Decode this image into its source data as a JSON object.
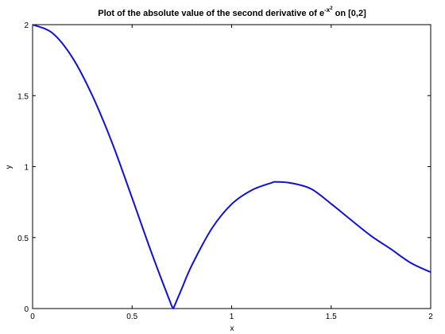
{
  "chart_data": {
    "type": "line",
    "title": {
      "prefix": "Plot of the absolute value of the second derivative of e",
      "exponent": "-x",
      "exponent_power": "2",
      "suffix": " on [0,2]"
    },
    "xlabel": "x",
    "ylabel": "y",
    "xlim": [
      0,
      2
    ],
    "ylim": [
      0,
      2
    ],
    "x_ticks": [
      {
        "value": 0,
        "label": "0"
      },
      {
        "value": 0.5,
        "label": "0.5"
      },
      {
        "value": 1,
        "label": "1"
      },
      {
        "value": 1.5,
        "label": "1.5"
      },
      {
        "value": 2,
        "label": "2"
      }
    ],
    "y_ticks": [
      {
        "value": 0,
        "label": "0"
      },
      {
        "value": 0.5,
        "label": "0.5"
      },
      {
        "value": 1,
        "label": "1"
      },
      {
        "value": 1.5,
        "label": "1.5"
      },
      {
        "value": 2,
        "label": "2"
      }
    ],
    "grid": false,
    "series": [
      {
        "color": "#1010d8",
        "x": [
          0,
          0.1,
          0.2,
          0.3,
          0.4,
          0.5,
          0.6,
          0.7,
          0.7071,
          0.75,
          0.8,
          0.9,
          1.0,
          1.1,
          1.2,
          1.2247,
          1.3,
          1.4,
          1.5,
          1.6,
          1.7,
          1.8,
          1.9,
          2.0
        ],
        "y": [
          2.0,
          1.9404,
          1.7679,
          1.5007,
          1.1661,
          0.7788,
          0.3837,
          0.0153,
          0.0,
          0.142,
          0.3048,
          0.563,
          0.7358,
          0.8336,
          0.8857,
          0.8925,
          0.8839,
          0.8427,
          0.7378,
          0.624,
          0.5123,
          0.419,
          0.3214,
          0.2564
        ]
      }
    ]
  }
}
